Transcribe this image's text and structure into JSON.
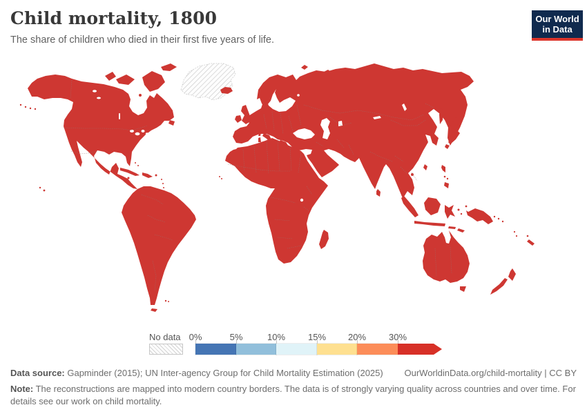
{
  "header": {
    "title": "Child mortality, 1800",
    "subtitle": "The share of children who died in their first five years of life."
  },
  "logo": {
    "line1": "Our World",
    "line2": "in Data",
    "bg_color": "#102a4e",
    "accent_color": "#dc352b"
  },
  "map": {
    "land_color": "#ce3732",
    "ocean_color": "#ffffff",
    "border_color": "#9b6f6b",
    "nodata_stripe_color": "#d2d2d2",
    "nodata_region": "Greenland"
  },
  "legend": {
    "nodata_label": "No data",
    "bins": [
      {
        "label": "0%",
        "color": "#4575b4"
      },
      {
        "label": "5%",
        "color": "#91bfdb"
      },
      {
        "label": "10%",
        "color": "#e0f3f8"
      },
      {
        "label": "15%",
        "color": "#fee090"
      },
      {
        "label": "20%",
        "color": "#fc8d59"
      },
      {
        "label": "30%",
        "color": "#d73027"
      }
    ]
  },
  "footer": {
    "source_label": "Data source:",
    "source_text": " Gapminder (2015); UN Inter-agency Group for Child Mortality Estimation (2025)",
    "link_text": "OurWorldinData.org/child-mortality | CC BY",
    "note_label": "Note:",
    "note_text": " The reconstructions are mapped into modern country borders. The data is of strongly varying quality across countries and over time. For details see our work on child mortality."
  },
  "chart_data": {
    "type": "choropleth_map",
    "title": "Child mortality, 1800",
    "subtitle": "The share of children who died in their first five years of life.",
    "year": 1800,
    "unit": "share of children dying in first five years (%)",
    "legend_bins": [
      {
        "range": "0-5%",
        "color": "#4575b4"
      },
      {
        "range": "5-10%",
        "color": "#91bfdb"
      },
      {
        "range": "10-15%",
        "color": "#e0f3f8"
      },
      {
        "range": "15-20%",
        "color": "#fee090"
      },
      {
        "range": "20-30%",
        "color": "#fc8d59"
      },
      {
        "range": ">30%",
        "color": "#d73027"
      }
    ],
    "values_summary": "Every country with data falls in the highest bin (>30% child mortality) and is shown in red.",
    "no_data_regions": [
      "Greenland"
    ],
    "legend_position": "bottom",
    "projection": "world, equirectangular-style OWID layout"
  }
}
